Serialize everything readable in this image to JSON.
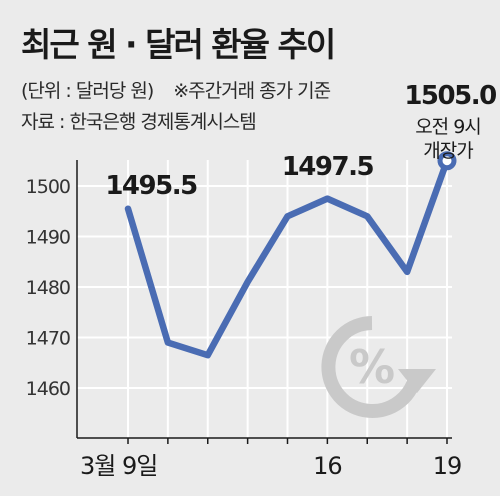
{
  "title": "최근 원 · 달러 환율 추이",
  "unit_label": "(단위 : 달러당 원)",
  "basis_note": "※주간거래 종가 기준",
  "source": "자료 : 한국은행 경제통계시스템",
  "last_point_note": [
    "오전 9시",
    "개장가"
  ],
  "icon": "percent-cycle-icon",
  "colors": {
    "line": "#4a6cb3",
    "background": "#ebebeb",
    "grid": "#ffffff",
    "axis": "#1a1a1a",
    "icon": "#c9c9c9"
  },
  "chart_data": {
    "type": "line",
    "x": [
      "3월 9일",
      "",
      "",
      "",
      "",
      "16",
      "",
      "",
      "19"
    ],
    "x_tick_labels": [
      "3월 9일",
      "16",
      "19"
    ],
    "values": [
      1495.5,
      1469,
      1466.5,
      1481,
      1494,
      1497.5,
      1494,
      1483,
      1505.0
    ],
    "y_ticks": [
      1460,
      1470,
      1480,
      1490,
      1500
    ],
    "ylim": [
      1450,
      1512
    ],
    "data_labels": [
      {
        "index": 0,
        "text": "1495.5"
      },
      {
        "index": 5,
        "text": "1497.5"
      },
      {
        "index": 8,
        "text": "1505.0"
      }
    ],
    "grid": true,
    "last_point_marker": "ring"
  }
}
